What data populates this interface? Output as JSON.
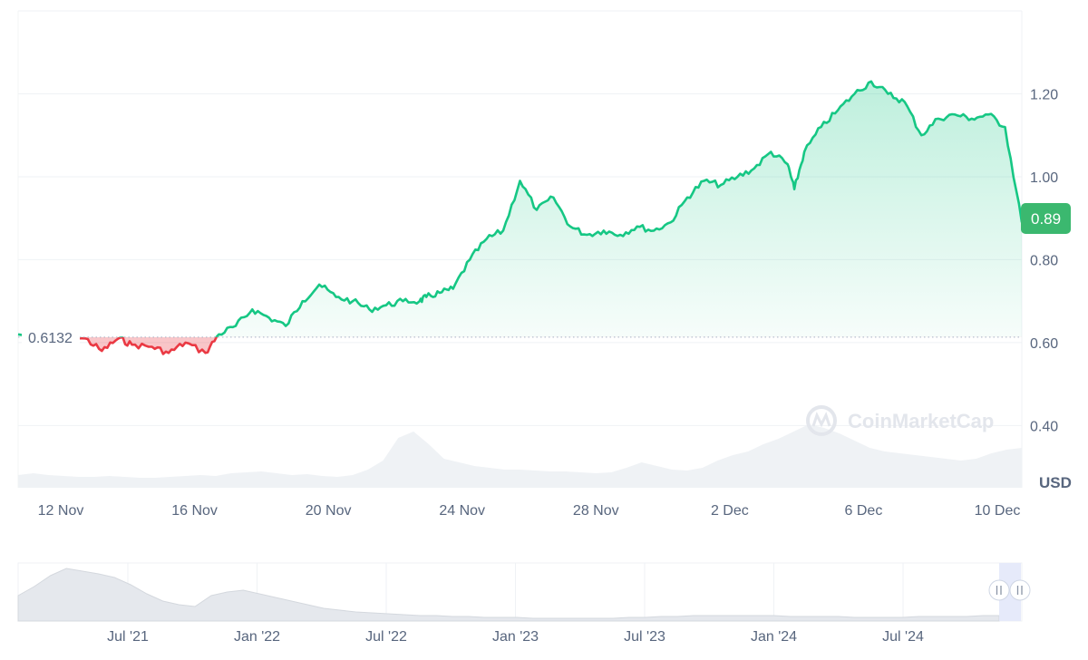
{
  "watermark": "CoinMarketCap",
  "currency_unit": "USD",
  "current_price_label": "0.89",
  "reference_price_label": "0.6132",
  "colors": {
    "up_line": "#16c784",
    "down_line": "#ea3943",
    "up_fill": "#16c784",
    "down_fill": "#ea3943",
    "volume": "#eff2f5",
    "grid": "#eff2f5",
    "badge_bg": "#3bb86f",
    "axis_text": "#58667e"
  },
  "chart_data": {
    "type": "line",
    "title": "",
    "xlabel": "",
    "ylabel": "",
    "ylim": [
      0.25,
      1.4
    ],
    "y_ticks": [
      "1.20",
      "1.00",
      "0.80",
      "0.60",
      "0.40"
    ],
    "x_ticks": [
      "12 Nov",
      "16 Nov",
      "20 Nov",
      "24 Nov",
      "28 Nov",
      "2 Dec",
      "6 Dec",
      "10 Dec"
    ],
    "reference_value": 0.6132,
    "grid": true,
    "series": [
      {
        "x": [
          0,
          1,
          2,
          2.5,
          3,
          3.4,
          4,
          4.5,
          5,
          5.6,
          6,
          6.5,
          7,
          7.5,
          8,
          8.5,
          9,
          9.5,
          10,
          10.5,
          11,
          11.5,
          12,
          12.2,
          12.6,
          13,
          13.5,
          14,
          14.5,
          15,
          15.5,
          16,
          16.5,
          17,
          17.5,
          18,
          18.5,
          19,
          19.5,
          20,
          20.5,
          21,
          21.5,
          22,
          22.5,
          23,
          23.2,
          23.5,
          24,
          24.5,
          25,
          25.5,
          26,
          26.5,
          27,
          27.5,
          28,
          28.5,
          29,
          29.5,
          30
        ],
        "values": [
          0.62,
          0.605,
          0.61,
          0.58,
          0.61,
          0.595,
          0.59,
          0.575,
          0.6,
          0.575,
          0.62,
          0.64,
          0.68,
          0.66,
          0.64,
          0.7,
          0.74,
          0.71,
          0.7,
          0.68,
          0.69,
          0.7,
          0.7,
          0.71,
          0.72,
          0.73,
          0.8,
          0.85,
          0.87,
          0.99,
          0.92,
          0.95,
          0.88,
          0.86,
          0.87,
          0.86,
          0.88,
          0.87,
          0.89,
          0.95,
          0.99,
          0.98,
          1.0,
          1.02,
          1.06,
          1.03,
          0.97,
          1.06,
          1.12,
          1.16,
          1.2,
          1.23,
          1.2,
          1.18,
          1.1,
          1.14,
          1.15,
          1.14,
          1.15,
          1.12,
          0.89
        ]
      }
    ]
  }
}
